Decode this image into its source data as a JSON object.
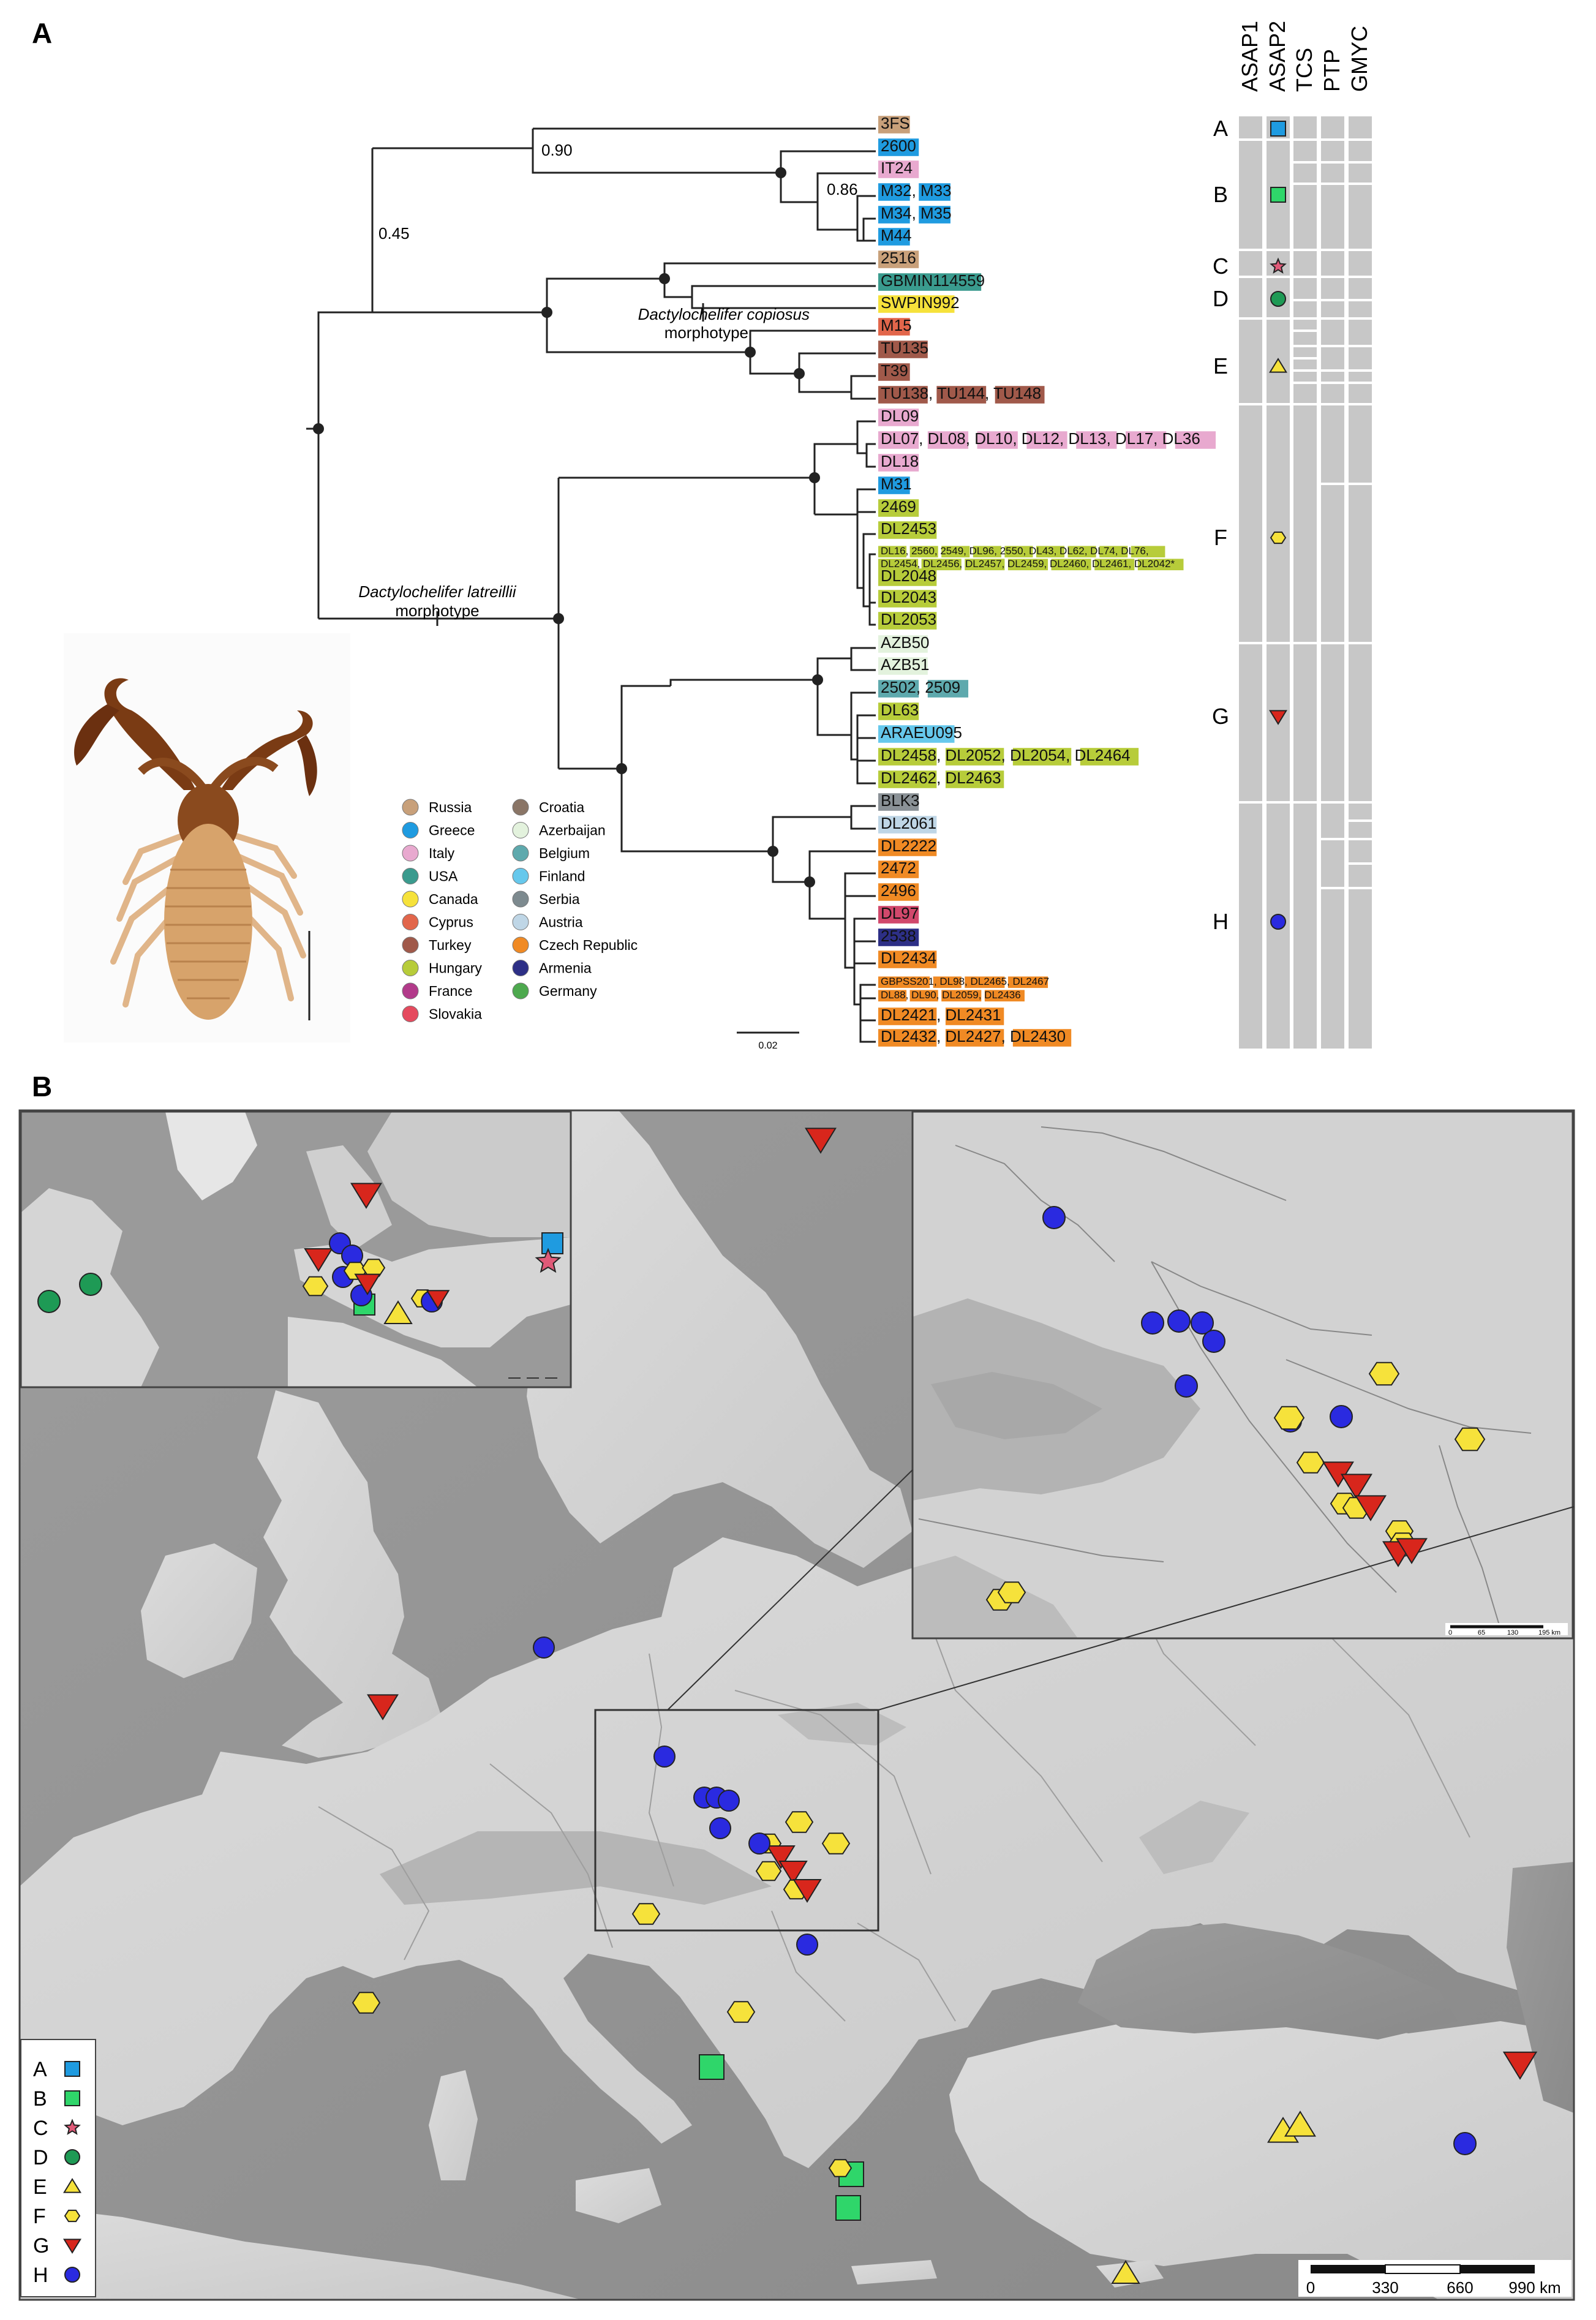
{
  "panel_a": {
    "letter": "A",
    "nodes": {
      "n_090": "0.90",
      "n_086": "0.86",
      "n_045": "0.45"
    },
    "morphotype_copiosus": {
      "name": "Dactylochelifer copiosus",
      "suffix": "morphotype"
    },
    "morphotype_latreillii": {
      "name": "Dactylochelifer latreillii",
      "suffix": "morphotype"
    },
    "scale_bar": "0.02",
    "tips": [
      {
        "label": "3FS",
        "color": "#c8a07a"
      },
      {
        "label": "2600",
        "color": "#1f9be0"
      },
      {
        "label": "IT24",
        "color": "#e8a9cf"
      },
      {
        "label": "M32, M33",
        "color": "#1f9be0"
      },
      {
        "label": "M34, M35",
        "color": "#1f9be0"
      },
      {
        "label": "M44",
        "color": "#1f9be0"
      },
      {
        "label": "2516",
        "color": "#c8a07a"
      },
      {
        "label": "GBMIN114559",
        "color": "#3a9b8e"
      },
      {
        "label": "SWPIN992",
        "color": "#f6e23b"
      },
      {
        "label": "M15",
        "color": "#e2664b"
      },
      {
        "label": "TU135",
        "color": "#a0594a"
      },
      {
        "label": "T39",
        "color": "#a0594a"
      },
      {
        "label": "TU138, TU144, TU148",
        "color": "#a0594a"
      },
      {
        "label": "DL09",
        "color": "#e8a9cf"
      },
      {
        "label": "DL07, DL08, DL10, DL12, DL13, DL17, DL36",
        "color": "#e8a9cf"
      },
      {
        "label": "DL18",
        "color": "#e8a9cf"
      },
      {
        "label": "M31",
        "color": "#1f9be0"
      },
      {
        "label": "2469",
        "color": "#b7cc3a"
      },
      {
        "label": "DL2453",
        "color": "#b7cc3a"
      },
      {
        "label": "DL16, 2560, 2549, DL96, 2550, DL43, DL62, DL74, DL76,",
        "color": "#b7cc3a",
        "small": true
      },
      {
        "label": "DL2454, DL2456, DL2457, DL2459, DL2460, DL2461, DL2042*",
        "color": "#b7cc3a",
        "small": true
      },
      {
        "label": "DL2048",
        "color": "#b7cc3a"
      },
      {
        "label": "DL2043",
        "color": "#b7cc3a"
      },
      {
        "label": "DL2053",
        "color": "#b7cc3a"
      },
      {
        "label": "AZB50",
        "color": "#e3f2dd"
      },
      {
        "label": "AZB51",
        "color": "#e3f2dd"
      },
      {
        "label": "2502, 2509",
        "color": "#5ea9ad"
      },
      {
        "label": "DL63",
        "color": "#b7cc3a"
      },
      {
        "label": "ARAEU095",
        "color": "#66c8ec"
      },
      {
        "label": "DL2458, DL2052, DL2054, DL2464",
        "color": "#b7cc3a"
      },
      {
        "label": "DL2462, DL2463",
        "color": "#b7cc3a"
      },
      {
        "label": "BLK3",
        "color": "#8a9196"
      },
      {
        "label": "DL2061",
        "color": "#bfd6e6"
      },
      {
        "label": "DL2222",
        "color": "#f08a24"
      },
      {
        "label": "2472",
        "color": "#f08a24"
      },
      {
        "label": "2496",
        "color": "#f08a24"
      },
      {
        "label": "DL97",
        "color": "#d1486c"
      },
      {
        "label": "2538",
        "color": "#2d2f86"
      },
      {
        "label": "DL2434",
        "color": "#f08a24"
      },
      {
        "label": "GBPSS201, DL98, DL2465, DL2467",
        "color": "#f08a24",
        "small": true
      },
      {
        "label": "DL88, DL90, DL2059, DL2436",
        "color": "#f08a24",
        "small": true
      },
      {
        "label": "DL2421, DL2431",
        "color": "#f08a24"
      },
      {
        "label": "DL2432, DL2427, DL2430",
        "color": "#f08a24"
      }
    ],
    "legend_left": [
      {
        "label": "Russia",
        "color": "#c8a07a"
      },
      {
        "label": "Greece",
        "color": "#1f9be0"
      },
      {
        "label": "Italy",
        "color": "#e8a9cf"
      },
      {
        "label": "USA",
        "color": "#3a9b8e"
      },
      {
        "label": "Canada",
        "color": "#f6e23b"
      },
      {
        "label": "Cyprus",
        "color": "#e2664b"
      },
      {
        "label": "Turkey",
        "color": "#a0594a"
      },
      {
        "label": "Hungary",
        "color": "#b7cc3a"
      },
      {
        "label": "France",
        "color": "#b23a8a"
      },
      {
        "label": "Slovakia",
        "color": "#e54a5e"
      }
    ],
    "legend_right": [
      {
        "label": "Croatia",
        "color": "#8a7566"
      },
      {
        "label": "Azerbaijan",
        "color": "#e3f2dd"
      },
      {
        "label": "Belgium",
        "color": "#5ea9ad"
      },
      {
        "label": "Finland",
        "color": "#66c8ec"
      },
      {
        "label": "Serbia",
        "color": "#7d8a8f"
      },
      {
        "label": "Austria",
        "color": "#bfd6e6"
      },
      {
        "label": "Czech Republic",
        "color": "#f08a24"
      },
      {
        "label": "Armenia",
        "color": "#2d2f86"
      },
      {
        "label": "Germany",
        "color": "#4da94e"
      }
    ],
    "columns": [
      "ASAP1",
      "ASAP2",
      "TCS",
      "PTP",
      "GMYC"
    ],
    "clades": [
      {
        "letter": "A",
        "color": "#1f9be0",
        "shape": "square"
      },
      {
        "letter": "B",
        "color": "#2fd66a",
        "shape": "square"
      },
      {
        "letter": "C",
        "color": "#e05a78",
        "shape": "star"
      },
      {
        "letter": "D",
        "color": "#1e9a55",
        "shape": "circle"
      },
      {
        "letter": "E",
        "color": "#f6e23b",
        "shape": "triangle"
      },
      {
        "letter": "F",
        "color": "#f6e23b",
        "shape": "hexagon"
      },
      {
        "letter": "G",
        "color": "#d8261c",
        "shape": "triangle-down"
      },
      {
        "letter": "H",
        "color": "#2a2ae0",
        "shape": "circle"
      }
    ]
  },
  "panel_b": {
    "letter": "B",
    "legend": [
      "A",
      "B",
      "C",
      "D",
      "E",
      "F",
      "G",
      "H"
    ],
    "scale_labels": [
      "0",
      "330",
      "660",
      "990 km"
    ],
    "inset_scale_labels": [
      "0",
      "65",
      "130",
      "195 km"
    ]
  }
}
